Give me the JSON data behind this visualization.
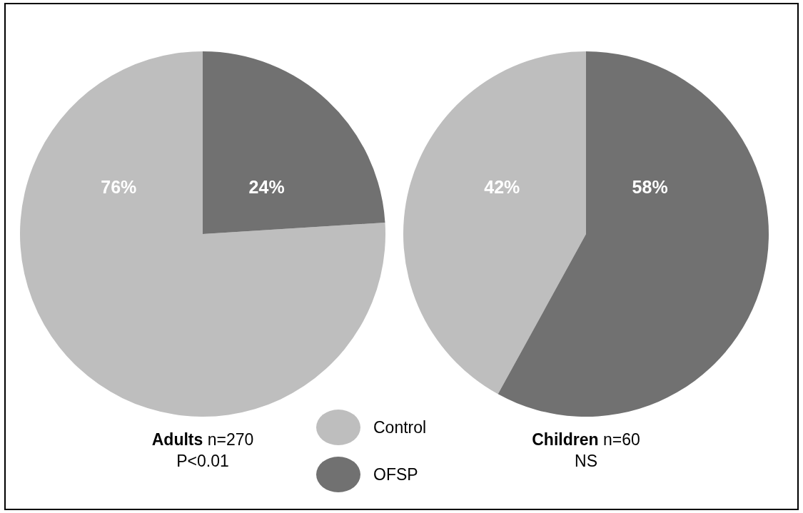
{
  "chart_data": [
    {
      "type": "pie",
      "title": "Adults n=270",
      "subtitle": "P<0.01",
      "categories": [
        "Control",
        "OFSP"
      ],
      "values": [
        76,
        24
      ],
      "colors": [
        "#bebebe",
        "#717171"
      ],
      "value_labels": [
        "76%",
        "24%"
      ],
      "legend": "bottom"
    },
    {
      "type": "pie",
      "title": "Children n=60",
      "subtitle": "NS",
      "categories": [
        null,
        null
      ],
      "values": [
        42,
        58
      ],
      "colors": [
        "#bebebe",
        "#717171"
      ],
      "value_labels": [
        "42%",
        "58%"
      ]
    }
  ]
}
